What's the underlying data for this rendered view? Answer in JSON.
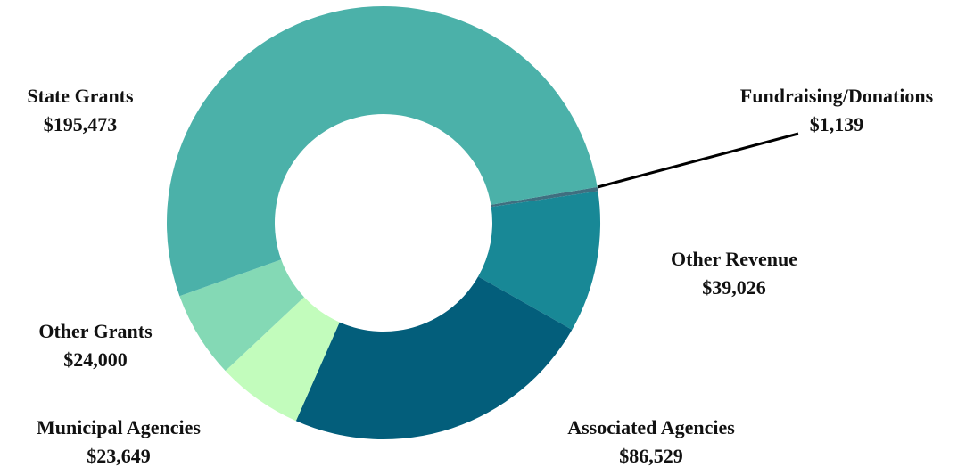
{
  "chart_data": {
    "type": "donut",
    "categories": [
      "Fundraising/Donations",
      "Other Revenue",
      "Associated Agencies",
      "Municipal Agencies",
      "Other Grants",
      "State Grants"
    ],
    "values": [
      1139,
      39026,
      86529,
      23649,
      24000,
      195473
    ],
    "value_labels": [
      "$1,139",
      "$39,026",
      "$86,529",
      "$23,649",
      "$24,000",
      "$195,473"
    ],
    "colors": [
      "#3f6f80",
      "#188896",
      "#035e7b",
      "#c2fcbc",
      "#84d9b5",
      "#4bb1a9"
    ]
  }
}
